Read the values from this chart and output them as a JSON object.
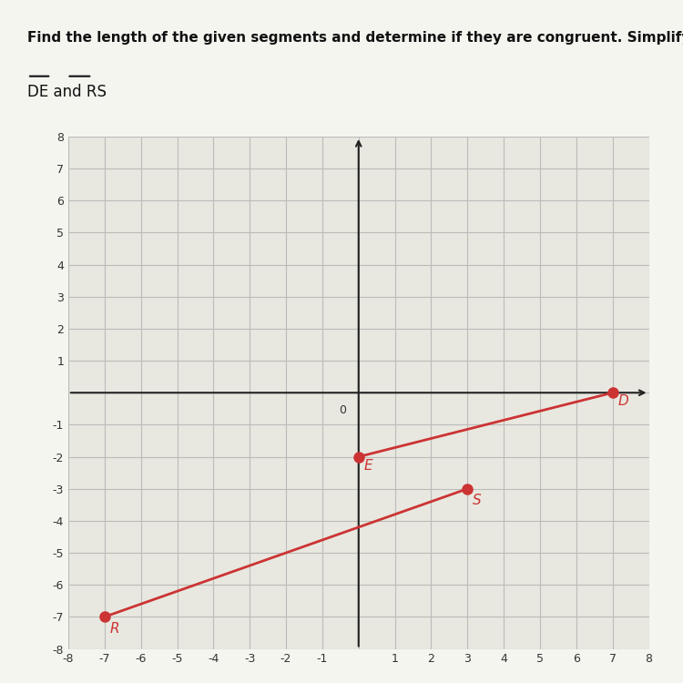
{
  "title_text": "Find the length of the given segments and determine if they are congruent. Simplify.",
  "subtitle_text": "DE and RS",
  "D": [
    7,
    0
  ],
  "E": [
    0,
    -2
  ],
  "R": [
    -7,
    -7
  ],
  "S": [
    3,
    -3
  ],
  "point_color": "#cc3333",
  "line_color": "#cc3333",
  "axis_color": "#222222",
  "grid_color": "#bbbbbb",
  "label_color": "#cc3333",
  "xlim": [
    -8,
    8
  ],
  "ylim": [
    -8,
    8
  ],
  "xticks": [
    -8,
    -7,
    -6,
    -5,
    -4,
    -3,
    -2,
    -1,
    0,
    1,
    2,
    3,
    4,
    5,
    6,
    7,
    8
  ],
  "yticks": [
    -8,
    -7,
    -6,
    -5,
    -4,
    -3,
    -2,
    -1,
    0,
    1,
    2,
    3,
    4,
    5,
    6,
    7,
    8
  ],
  "fig_bg": "#f5f5f0",
  "plot_bg": "#e8e8e0",
  "point_size": 8,
  "font_size_title": 11,
  "font_size_subtitle": 12,
  "font_size_ticks": 9,
  "font_size_labels": 11
}
